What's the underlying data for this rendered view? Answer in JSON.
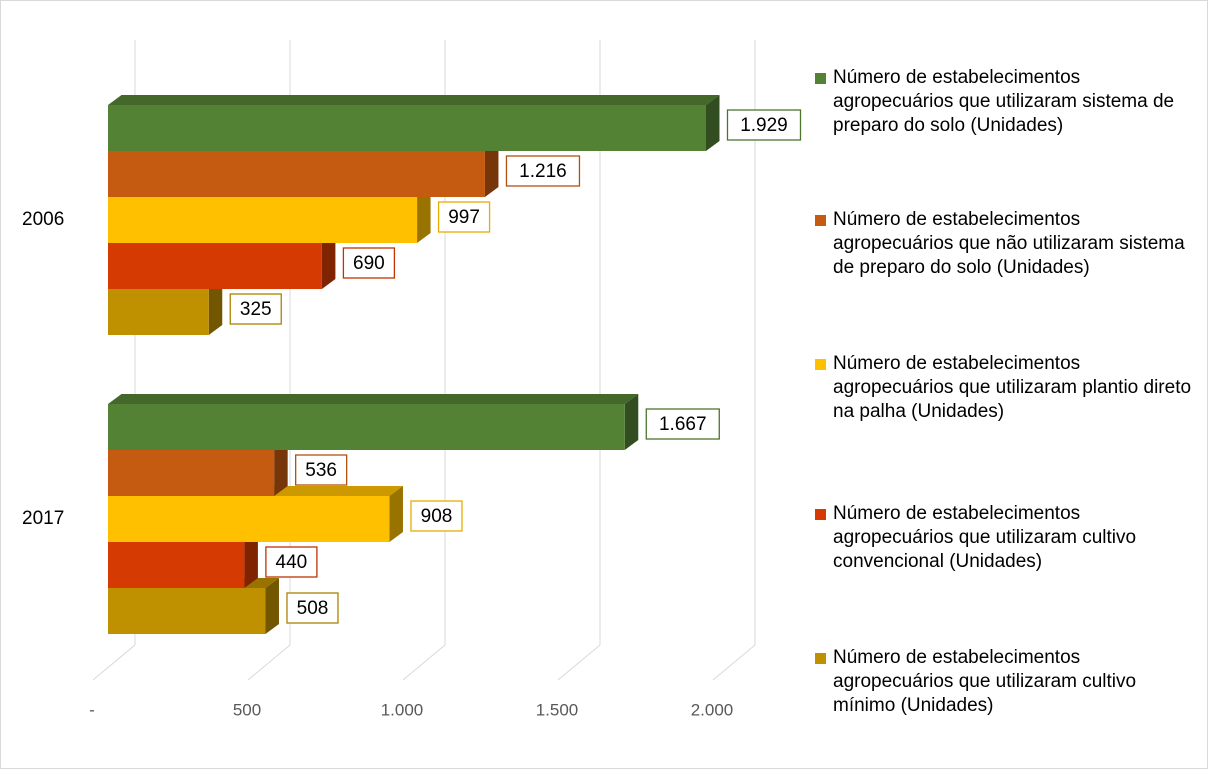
{
  "chart_data": {
    "type": "bar3d_horizontal",
    "categories": [
      "2006",
      "2017"
    ],
    "series": [
      {
        "name": "Número de estabelecimentos agropecuários que utilizaram sistema de preparo do solo (Unidades)",
        "color": "#548235",
        "values": [
          1929,
          1667
        ],
        "value_labels": [
          "1.929",
          "1.667"
        ]
      },
      {
        "name": "Número de estabelecimentos agropecuários que não utilizaram sistema de preparo do solo (Unidades)",
        "color": "#c55a11",
        "values": [
          1216,
          536
        ],
        "value_labels": [
          "1.216",
          "536"
        ]
      },
      {
        "name": "Número de estabelecimentos agropecuários que utilizaram plantio direto na palha (Unidades)",
        "color": "#ffc000",
        "values": [
          997,
          908
        ],
        "value_labels": [
          "997",
          "908"
        ]
      },
      {
        "name": "Número de estabelecimentos agropecuários que utilizaram cultivo convencional (Unidades)",
        "color": "#d43a02",
        "values": [
          690,
          440
        ],
        "value_labels": [
          "690",
          "440"
        ]
      },
      {
        "name": "Número de estabelecimentos agropecuários que utilizaram cultivo mínimo (Unidades)",
        "color": "#bf9000",
        "values": [
          325,
          508
        ],
        "value_labels": [
          "325",
          "508"
        ]
      }
    ],
    "xlim": [
      0,
      2000
    ],
    "xticks": [
      {
        "value": 0,
        "label": "-"
      },
      500,
      {
        "value": 1000,
        "label": "1.000"
      },
      {
        "value": 1500,
        "label": "1.500"
      },
      {
        "value": 2000,
        "label": "2.000"
      }
    ],
    "grid": true,
    "legend": "right"
  }
}
